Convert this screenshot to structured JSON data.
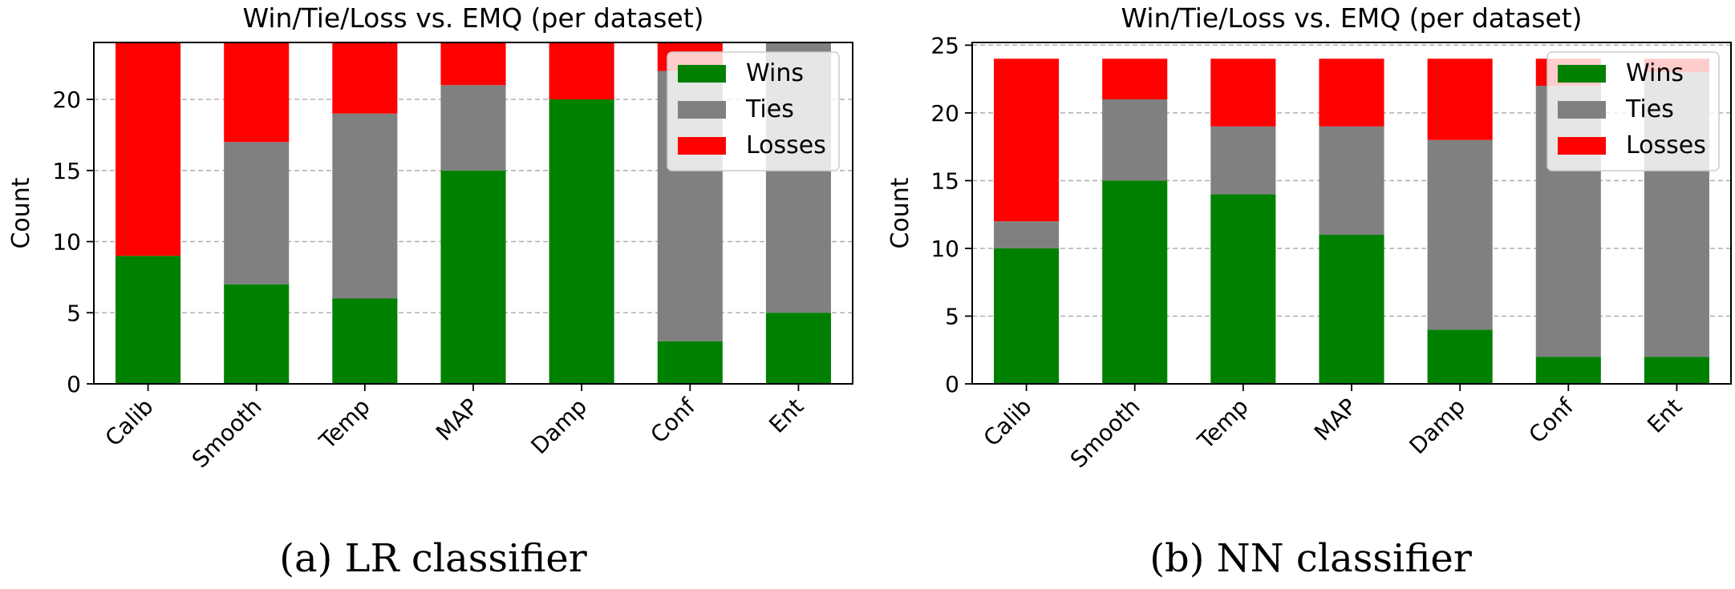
{
  "chart_data": [
    {
      "type": "bar",
      "stacked": true,
      "title": "Win/Tie/Loss vs. EMQ (per dataset)",
      "ylabel": "Count",
      "xlabel": "",
      "caption": "(a) LR classifier",
      "categories": [
        "Calib",
        "Smooth",
        "Temp",
        "MAP",
        "Damp",
        "Conf",
        "Ent"
      ],
      "ylim": [
        0,
        24
      ],
      "yticks": [
        0,
        5,
        10,
        15,
        20
      ],
      "grid": "horizontal dashed",
      "legend_position": "top-right",
      "series": [
        {
          "name": "Wins",
          "color": "#008000",
          "values": [
            9,
            7,
            6,
            15,
            20,
            3,
            5
          ]
        },
        {
          "name": "Ties",
          "color": "#808080",
          "values": [
            0,
            10,
            13,
            6,
            0,
            19,
            19
          ]
        },
        {
          "name": "Losses",
          "color": "#ff0000",
          "values": [
            15,
            7,
            5,
            3,
            4,
            2,
            0
          ]
        }
      ]
    },
    {
      "type": "bar",
      "stacked": true,
      "title": "Win/Tie/Loss vs. EMQ (per dataset)",
      "ylabel": "Count",
      "xlabel": "",
      "caption": "(b) NN classifier",
      "categories": [
        "Calib",
        "Smooth",
        "Temp",
        "MAP",
        "Damp",
        "Conf",
        "Ent"
      ],
      "ylim": [
        0,
        25.2
      ],
      "yticks": [
        0,
        5,
        10,
        15,
        20,
        25
      ],
      "grid": "horizontal dashed",
      "legend_position": "top-right",
      "series": [
        {
          "name": "Wins",
          "color": "#008000",
          "values": [
            10,
            15,
            14,
            11,
            4,
            2,
            2
          ]
        },
        {
          "name": "Ties",
          "color": "#808080",
          "values": [
            2,
            6,
            5,
            8,
            14,
            20,
            21
          ]
        },
        {
          "name": "Losses",
          "color": "#ff0000",
          "values": [
            12,
            3,
            5,
            5,
            6,
            2,
            1
          ]
        }
      ]
    }
  ]
}
